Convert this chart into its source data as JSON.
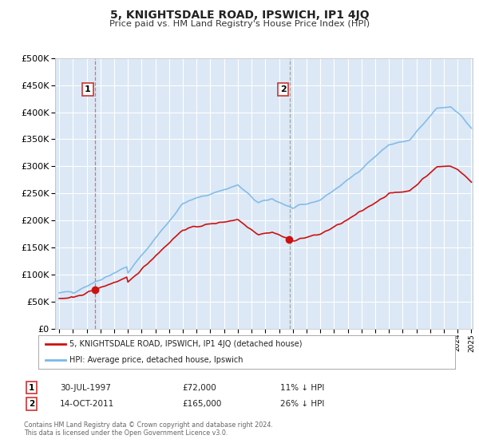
{
  "title": "5, KNIGHTSDALE ROAD, IPSWICH, IP1 4JQ",
  "subtitle": "Price paid vs. HM Land Registry's House Price Index (HPI)",
  "hpi_label": "HPI: Average price, detached house, Ipswich",
  "property_label": "5, KNIGHTSDALE ROAD, IPSWICH, IP1 4JQ (detached house)",
  "footnote": "Contains HM Land Registry data © Crown copyright and database right 2024.\nThis data is licensed under the Open Government Licence v3.0.",
  "sale1_date": "30-JUL-1997",
  "sale1_price": 72000,
  "sale1_hpi_pct": "11% ↓ HPI",
  "sale2_date": "14-OCT-2011",
  "sale2_price": 165000,
  "sale2_hpi_pct": "26% ↓ HPI",
  "hpi_color": "#7ab8e8",
  "property_color": "#cc1111",
  "sale_marker_color": "#cc1111",
  "fig_bg_color": "#ffffff",
  "plot_bg_color": "#dce8f5",
  "grid_color": "#ffffff",
  "ylim": [
    0,
    500000
  ],
  "yticks": [
    0,
    50000,
    100000,
    150000,
    200000,
    250000,
    300000,
    350000,
    400000,
    450000,
    500000
  ],
  "x_start_year": 1995,
  "x_end_year": 2025,
  "sale1_year": 1997.58,
  "sale2_year": 2011.79
}
